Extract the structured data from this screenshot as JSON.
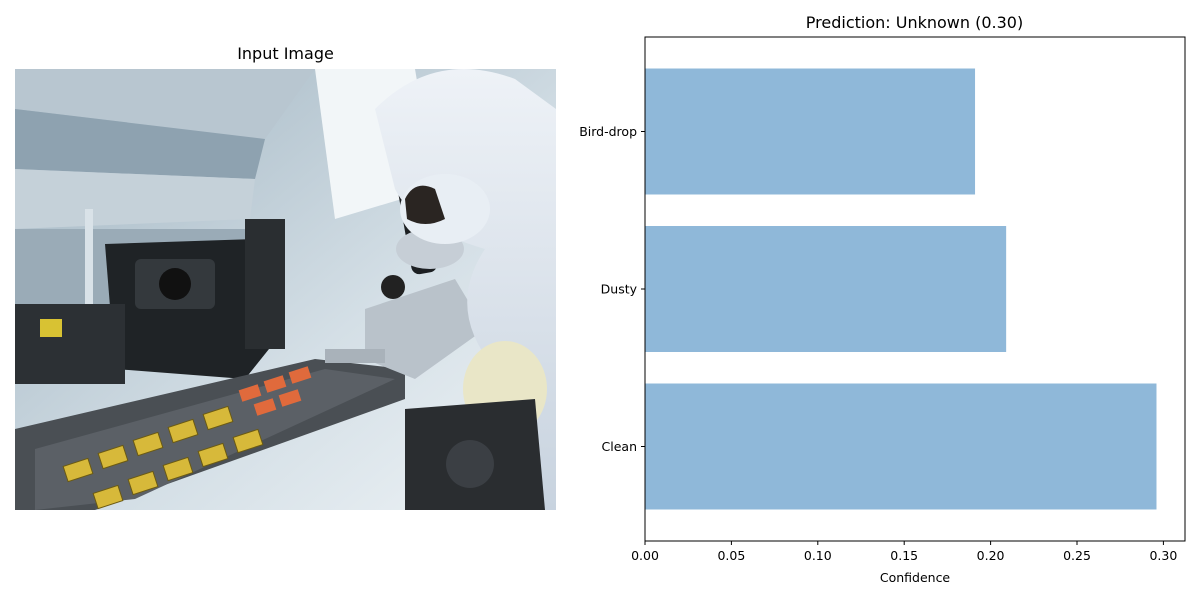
{
  "left_panel": {
    "title": "Input Image",
    "image_description_icon": "lab-microscope-photo"
  },
  "chart_data": {
    "type": "bar",
    "orientation": "horizontal",
    "title": "Prediction: Unknown (0.30)",
    "categories": [
      "Clean",
      "Dusty",
      "Bird-drop"
    ],
    "values": [
      0.296,
      0.209,
      0.191
    ],
    "xlabel": "Confidence",
    "ylabel": "",
    "xlim": [
      0.0,
      0.3125
    ],
    "xticks": [
      0.0,
      0.05,
      0.1,
      0.15,
      0.2,
      0.25,
      0.3
    ],
    "xtick_labels": [
      "0.00",
      "0.05",
      "0.10",
      "0.15",
      "0.20",
      "0.25",
      "0.30"
    ],
    "bar_color": "#8fb8d9",
    "grid": false
  }
}
